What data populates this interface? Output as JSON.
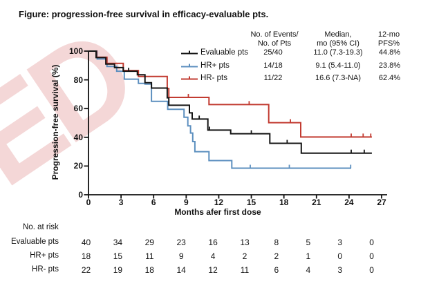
{
  "figure": {
    "title": "Figure: progression-free survival in efficacy-evaluable pts.",
    "watermark_text": "ED"
  },
  "legend_table": {
    "headers": {
      "events_line1": "No. of Events/",
      "events_line2": "No. of Pts",
      "median_line1": "Median,",
      "median_line2": "mo (95% CI)",
      "pfs_line1": "12-mo",
      "pfs_line2": "PFS%"
    },
    "rows": [
      {
        "label": "Evaluable pts",
        "color": "#141414",
        "events": "25/40",
        "median": "11.0 (7.3-19.3)",
        "pfs": "44.8%"
      },
      {
        "label": "HR+ pts",
        "color": "#5c8fbf",
        "events": "14/18",
        "median": "9.1 (5.4-11.0)",
        "pfs": "23.8%"
      },
      {
        "label": "HR- pts",
        "color": "#c23b31",
        "events": "11/22",
        "median": "16.6 (7.3-NA)",
        "pfs": "62.4%"
      }
    ]
  },
  "chart_data": {
    "type": "line",
    "subtype": "kaplan-meier-step",
    "title": "",
    "xlabel": "Months afer first dose",
    "ylabel": "Progression-free survival (%)",
    "xlim": [
      0,
      27
    ],
    "ylim": [
      0,
      100
    ],
    "xticks": [
      0,
      3,
      6,
      9,
      12,
      15,
      18,
      21,
      24,
      27
    ],
    "yticks": [
      0,
      20,
      40,
      60,
      80,
      100
    ],
    "grid": false,
    "legend_position": "top-right",
    "series": [
      {
        "name": "HR+ pts",
        "color": "#5c8fbf",
        "steps": [
          [
            0,
            100
          ],
          [
            0.8,
            94.5
          ],
          [
            1.7,
            89.3
          ],
          [
            2.6,
            86
          ],
          [
            3.3,
            80.5
          ],
          [
            4.6,
            77.5
          ],
          [
            5.2,
            77
          ],
          [
            5.8,
            65
          ],
          [
            7.3,
            59.5
          ],
          [
            8.8,
            54
          ],
          [
            9.15,
            48
          ],
          [
            9.4,
            43
          ],
          [
            9.6,
            37
          ],
          [
            9.8,
            30
          ],
          [
            11.1,
            23.8
          ],
          [
            13.2,
            18.5
          ]
        ],
        "end": 24.2,
        "censors": [
          14.9,
          18.5,
          24.15
        ]
      },
      {
        "name": "HR- pts",
        "color": "#c23b31",
        "steps": [
          [
            0,
            100
          ],
          [
            0.75,
            95.7
          ],
          [
            1.7,
            91.5
          ],
          [
            3.2,
            86.5
          ],
          [
            4.6,
            82.3
          ],
          [
            7.25,
            74
          ],
          [
            7.4,
            67.8
          ],
          [
            11.1,
            62.8
          ],
          [
            16.6,
            50.2
          ],
          [
            19.55,
            40.2
          ]
        ],
        "end": 26.1,
        "censors": [
          9.2,
          14.8,
          18.6,
          24.2,
          25.3,
          26.0
        ]
      },
      {
        "name": "Evaluable pts",
        "color": "#141414",
        "steps": [
          [
            0,
            100
          ],
          [
            0.7,
            95.5
          ],
          [
            1.6,
            91
          ],
          [
            2.4,
            88.5
          ],
          [
            3.2,
            86
          ],
          [
            4.5,
            83.5
          ],
          [
            5.2,
            78
          ],
          [
            5.8,
            74.3
          ],
          [
            7.25,
            67.5
          ],
          [
            7.4,
            62.3
          ],
          [
            9.3,
            57
          ],
          [
            9.55,
            52.7
          ],
          [
            11.0,
            45
          ],
          [
            13.1,
            42.5
          ],
          [
            16.7,
            35.8
          ],
          [
            19.6,
            29
          ]
        ],
        "end": 26.1,
        "censors": [
          3.7,
          10.2,
          11.15,
          15.0,
          18.3,
          24.2,
          25.4
        ]
      }
    ]
  },
  "risk_table": {
    "title": "No. at risk",
    "rows": [
      {
        "label": "Evaluable pts",
        "values": [
          40,
          34,
          29,
          23,
          16,
          13,
          8,
          5,
          3,
          0
        ]
      },
      {
        "label": "HR+ pts",
        "values": [
          18,
          15,
          11,
          9,
          4,
          2,
          2,
          1,
          0,
          0
        ]
      },
      {
        "label": "HR- pts",
        "values": [
          22,
          19,
          18,
          14,
          12,
          11,
          6,
          4,
          3,
          0
        ]
      }
    ]
  }
}
